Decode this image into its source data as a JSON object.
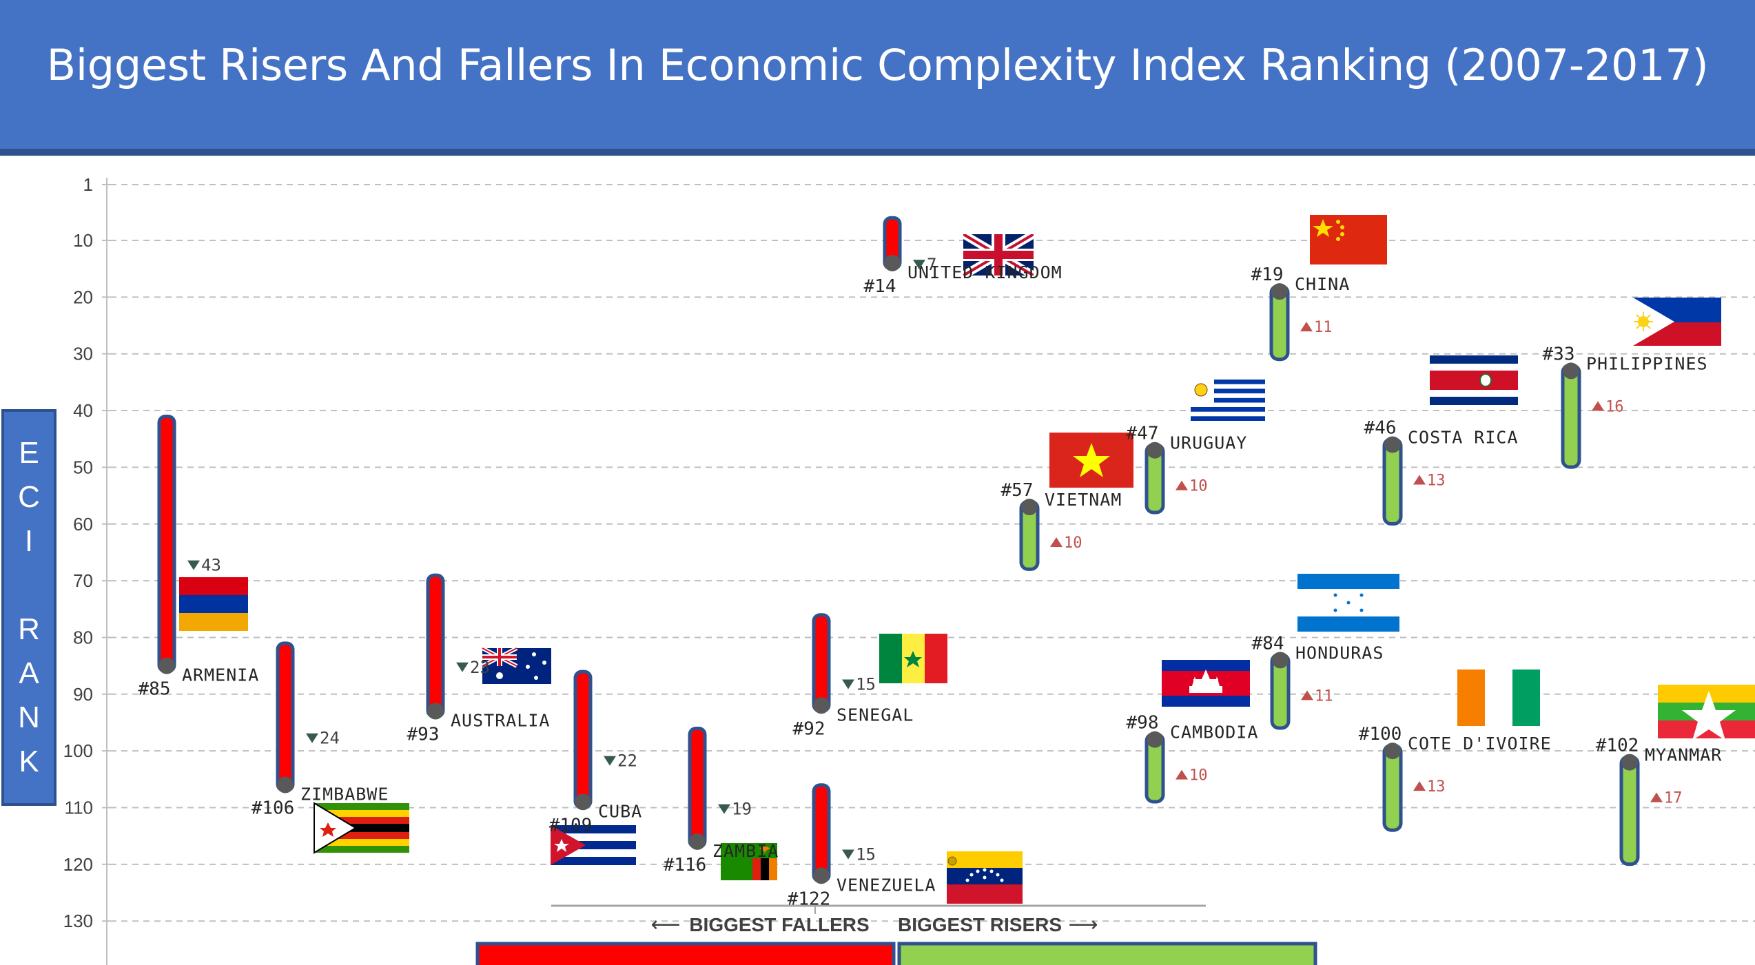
{
  "title": "Biggest Risers And Fallers In Economic Complexity Index Ranking (2007-2017)",
  "side_label_letters": [
    "E",
    "C",
    "I",
    "R",
    "A",
    "N",
    "K"
  ],
  "legend": {
    "fallers": "BIGGEST FALLERS",
    "risers": "BIGGEST RISERS",
    "left_arrow": "⟵",
    "right_arrow": "⟶"
  },
  "colors": {
    "banner": "#4472c4",
    "faller_fill": "#ff0000",
    "riser_fill": "#92d050",
    "bar_border": "#2f528f",
    "dot": "#595959",
    "down_marker": "#375a4f",
    "up_marker": "#c0504d"
  },
  "chart_data": {
    "type": "range-bar",
    "title": "Biggest Risers And Fallers In Economic Complexity Index Ranking (2007-2017)",
    "ylabel": "ECI RANK",
    "y_inverted": true,
    "ylim": [
      1,
      140
    ],
    "yticks": [
      "1",
      "10",
      "20",
      "30",
      "40",
      "50",
      "60",
      "70",
      "80",
      "90",
      "100",
      "110",
      "120",
      "130",
      "140"
    ],
    "grid": true,
    "series": [
      {
        "name": "BIGGEST FALLERS",
        "color": "#ff0000"
      },
      {
        "name": "BIGGEST RISERS",
        "color": "#92d050"
      }
    ],
    "fallers": [
      {
        "country": "ARMENIA",
        "rank_2007": 42,
        "rank_2017": 85,
        "rank_label": "#85",
        "change": 43,
        "change_label": "43",
        "flag": "armenia-flag"
      },
      {
        "country": "ZIMBABWE",
        "rank_2007": 82,
        "rank_2017": 106,
        "rank_label": "#106",
        "change": 24,
        "change_label": "24",
        "flag": "zimbabwe-flag"
      },
      {
        "country": "AUSTRALIA",
        "rank_2007": 70,
        "rank_2017": 93,
        "rank_label": "#93",
        "change": 23,
        "change_label": "23",
        "flag": "australia-flag"
      },
      {
        "country": "CUBA",
        "rank_2007": 87,
        "rank_2017": 109,
        "rank_label": "#109",
        "change": 22,
        "change_label": "22",
        "flag": "cuba-flag"
      },
      {
        "country": "ZAMBIA",
        "rank_2007": 97,
        "rank_2017": 116,
        "rank_label": "#116",
        "change": 19,
        "change_label": "19",
        "flag": "zambia-flag"
      },
      {
        "country": "SENEGAL",
        "rank_2007": 77,
        "rank_2017": 92,
        "rank_label": "#92",
        "change": 15,
        "change_label": "15",
        "flag": "senegal-flag"
      },
      {
        "country": "VENEZUELA",
        "rank_2007": 107,
        "rank_2017": 122,
        "rank_label": "#122",
        "change": 15,
        "change_label": "15",
        "flag": "venezuela-flag"
      },
      {
        "country": "UNITED KINGDOM",
        "rank_2007": 7,
        "rank_2017": 14,
        "rank_label": "#14",
        "change": 7,
        "change_label": "7",
        "flag": "united-kingdom-flag"
      }
    ],
    "risers": [
      {
        "country": "VIETNAM",
        "rank_2007": 67,
        "rank_2017": 57,
        "rank_label": "#57",
        "change": 10,
        "change_label": "10",
        "flag": "vietnam-flag"
      },
      {
        "country": "URUGUAY",
        "rank_2007": 57,
        "rank_2017": 47,
        "rank_label": "#47",
        "change": 10,
        "change_label": "10",
        "flag": "uruguay-flag"
      },
      {
        "country": "CAMBODIA",
        "rank_2007": 108,
        "rank_2017": 98,
        "rank_label": "#98",
        "change": 10,
        "change_label": "10",
        "flag": "cambodia-flag"
      },
      {
        "country": "CHINA",
        "rank_2007": 30,
        "rank_2017": 19,
        "rank_label": "#19",
        "change": 11,
        "change_label": "11",
        "flag": "china-flag"
      },
      {
        "country": "HONDURAS",
        "rank_2007": 95,
        "rank_2017": 84,
        "rank_label": "#84",
        "change": 11,
        "change_label": "11",
        "flag": "honduras-flag"
      },
      {
        "country": "COSTA RICA",
        "rank_2007": 59,
        "rank_2017": 46,
        "rank_label": "#46",
        "change": 13,
        "change_label": "13",
        "flag": "costa-rica-flag"
      },
      {
        "country": "COTE D'IVOIRE",
        "rank_2007": 113,
        "rank_2017": 100,
        "rank_label": "#100",
        "change": 13,
        "change_label": "13",
        "flag": "cote-divoire-flag"
      },
      {
        "country": "PHILIPPINES",
        "rank_2007": 49,
        "rank_2017": 33,
        "rank_label": "#33",
        "change": 16,
        "change_label": "16",
        "flag": "philippines-flag"
      },
      {
        "country": "MYANMAR",
        "rank_2007": 119,
        "rank_2017": 102,
        "rank_label": "#102",
        "change": 17,
        "change_label": "17",
        "flag": "myanmar-flag"
      }
    ]
  }
}
